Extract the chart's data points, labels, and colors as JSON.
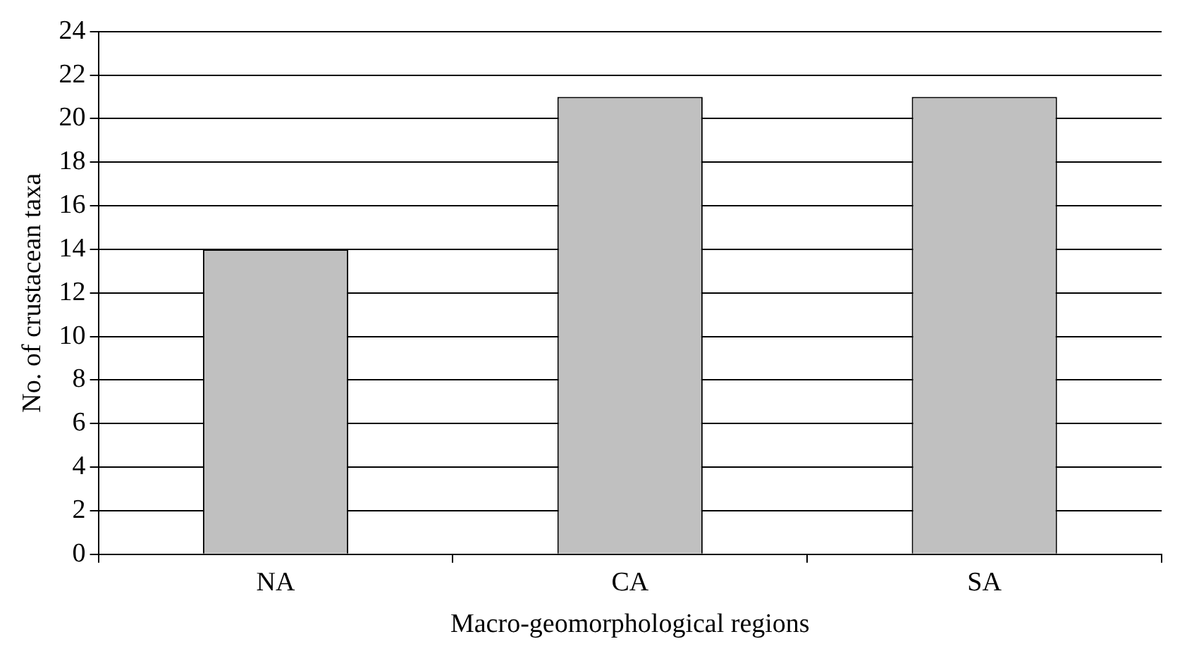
{
  "chart_data": {
    "type": "bar",
    "xlabel": "Macro-geomorphological regions",
    "ylabel": "No. of crustacean taxa",
    "categories": [
      "NA",
      "CA",
      "SA"
    ],
    "values": [
      14,
      21,
      21
    ],
    "color": "#c0c0c0",
    "ylim": [
      0,
      24
    ],
    "yticks": [
      0,
      2,
      4,
      6,
      8,
      10,
      12,
      14,
      16,
      18,
      20,
      22,
      24
    ],
    "grid": "y",
    "legend": false
  }
}
